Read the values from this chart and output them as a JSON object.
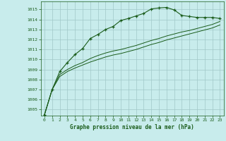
{
  "bg_color": "#c8ecec",
  "grid_color": "#a0c8c8",
  "line_color": "#1a5c1a",
  "marker_color": "#1a5c1a",
  "title": "Graphe pression niveau de la mer (hPa)",
  "ylim": [
    1004.4,
    1015.8
  ],
  "xlim": [
    -0.5,
    23.5
  ],
  "yticks": [
    1005,
    1006,
    1007,
    1008,
    1009,
    1010,
    1011,
    1012,
    1013,
    1014,
    1015
  ],
  "xticks": [
    0,
    1,
    2,
    3,
    4,
    5,
    6,
    7,
    8,
    9,
    10,
    11,
    12,
    13,
    14,
    15,
    16,
    17,
    18,
    19,
    20,
    21,
    22,
    23
  ],
  "series1_x": [
    0,
    1,
    2,
    3,
    4,
    5,
    6,
    7,
    8,
    9,
    10,
    11,
    12,
    13,
    14,
    15,
    16,
    17,
    18,
    19,
    20,
    21,
    22,
    23
  ],
  "series1_y": [
    1004.5,
    1007.0,
    1008.8,
    1009.7,
    1010.5,
    1011.1,
    1012.1,
    1012.5,
    1013.0,
    1013.3,
    1013.9,
    1014.1,
    1014.35,
    1014.6,
    1015.05,
    1015.15,
    1015.2,
    1014.95,
    1014.4,
    1014.3,
    1014.2,
    1014.2,
    1014.2,
    1014.1
  ],
  "series2_x": [
    0,
    1,
    2,
    3,
    4,
    5,
    6,
    7,
    8,
    9,
    10,
    11,
    12,
    13,
    14,
    15,
    16,
    17,
    18,
    19,
    20,
    21,
    22,
    23
  ],
  "series2_y": [
    1004.5,
    1007.0,
    1008.5,
    1009.0,
    1009.4,
    1009.7,
    1010.1,
    1010.4,
    1010.65,
    1010.85,
    1011.0,
    1011.2,
    1011.4,
    1011.65,
    1011.9,
    1012.1,
    1012.35,
    1012.55,
    1012.75,
    1012.9,
    1013.1,
    1013.3,
    1013.5,
    1013.8
  ],
  "series3_x": [
    0,
    1,
    2,
    3,
    4,
    5,
    6,
    7,
    8,
    9,
    10,
    11,
    12,
    13,
    14,
    15,
    16,
    17,
    18,
    19,
    20,
    21,
    22,
    23
  ],
  "series3_y": [
    1004.5,
    1007.0,
    1008.3,
    1008.8,
    1009.15,
    1009.45,
    1009.75,
    1010.0,
    1010.25,
    1010.45,
    1010.6,
    1010.8,
    1011.0,
    1011.25,
    1011.5,
    1011.7,
    1011.95,
    1012.15,
    1012.35,
    1012.55,
    1012.75,
    1012.95,
    1013.15,
    1013.45
  ]
}
